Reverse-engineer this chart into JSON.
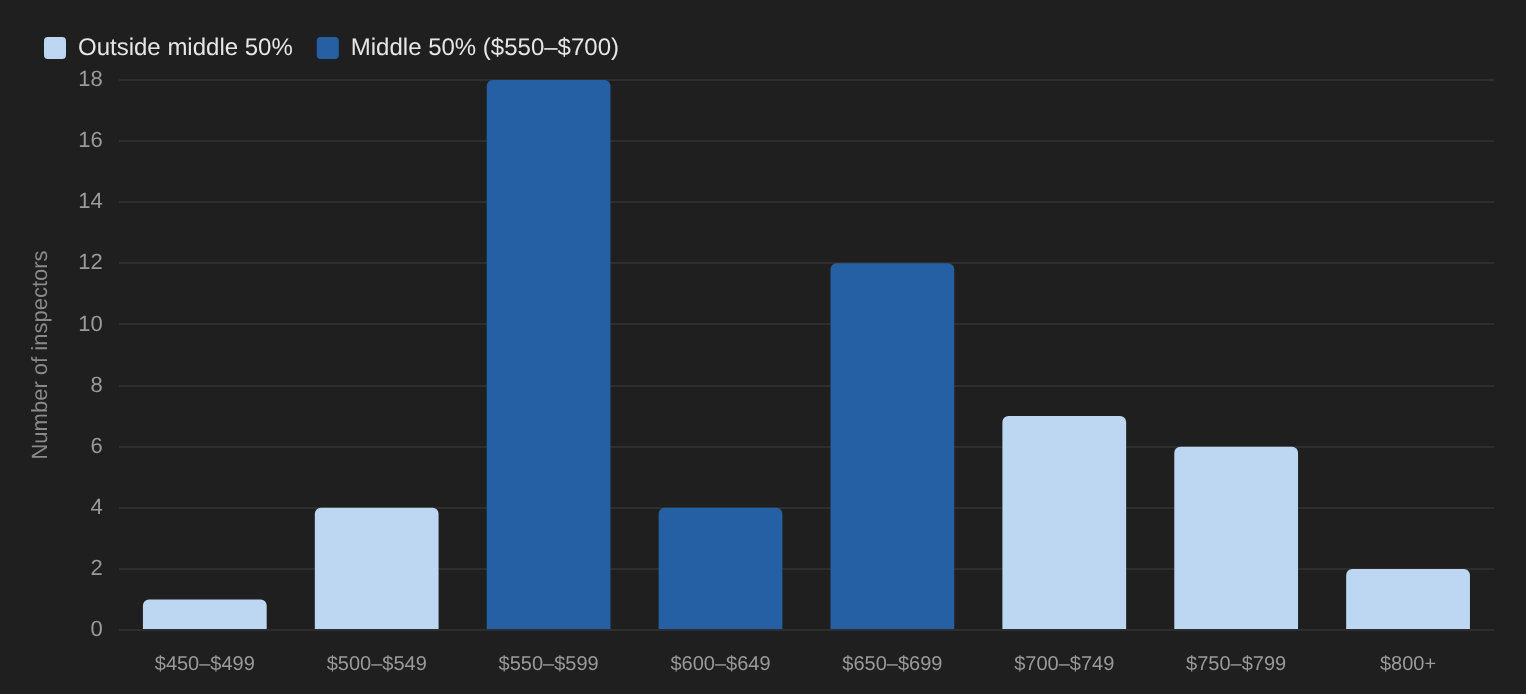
{
  "chart_data": {
    "type": "bar",
    "ylabel": "Number of inspectors",
    "categories": [
      "$450–$499",
      "$500–$549",
      "$550–$599",
      "$600–$649",
      "$650–$699",
      "$700–$749",
      "$750–$799",
      "$800+"
    ],
    "series": [
      {
        "name": "Outside middle 50%",
        "color": "#bdd7f2",
        "values": [
          1,
          4,
          null,
          null,
          null,
          7,
          6,
          2
        ]
      },
      {
        "name": "Middle 50% ($550–$700)",
        "color": "#2660a4",
        "values": [
          null,
          null,
          18,
          4,
          12,
          null,
          null,
          null
        ]
      }
    ],
    "ylim": [
      0,
      18
    ],
    "yticks": [
      0,
      2,
      4,
      6,
      8,
      10,
      12,
      14,
      16,
      18
    ],
    "grid": "y",
    "legend": "top left"
  }
}
